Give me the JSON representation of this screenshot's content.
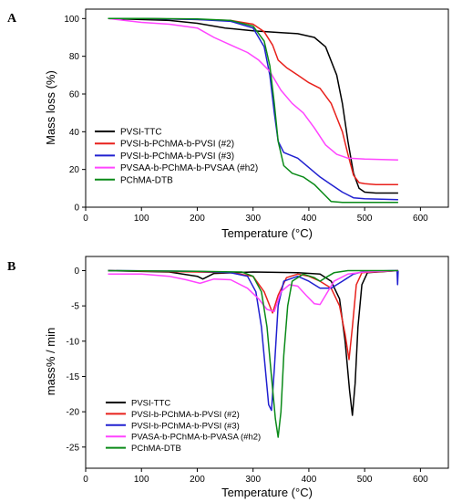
{
  "chart_data": [
    {
      "type": "line",
      "panel_label": "A",
      "xlabel": "Temperature (°C)",
      "ylabel": "Mass loss (%)",
      "xlim": [
        0,
        650
      ],
      "ylim": [
        0,
        105
      ],
      "xticks": [
        0,
        100,
        200,
        300,
        400,
        500,
        600
      ],
      "yticks": [
        0,
        20,
        40,
        60,
        80,
        100
      ],
      "grid": false,
      "legend_position": "bottom-left",
      "series": [
        {
          "name": "PVSI-TTC",
          "color": "#000000",
          "points": [
            [
              40,
              100
            ],
            [
              100,
              99.5
            ],
            [
              150,
              99
            ],
            [
              200,
              97.5
            ],
            [
              250,
              95
            ],
            [
              300,
              93.5
            ],
            [
              350,
              92.5
            ],
            [
              380,
              92
            ],
            [
              410,
              90
            ],
            [
              430,
              85
            ],
            [
              450,
              70
            ],
            [
              460,
              55
            ],
            [
              470,
              35
            ],
            [
              480,
              18
            ],
            [
              490,
              10
            ],
            [
              500,
              8
            ],
            [
              520,
              7.5
            ],
            [
              560,
              7.5
            ]
          ]
        },
        {
          "name": "PVSI-b-PChMA-b-PVSI (#2)",
          "color": "#e8211c",
          "points": [
            [
              40,
              100
            ],
            [
              100,
              100
            ],
            [
              200,
              99.5
            ],
            [
              260,
              99
            ],
            [
              300,
              97
            ],
            [
              320,
              93
            ],
            [
              335,
              86
            ],
            [
              345,
              78
            ],
            [
              360,
              74
            ],
            [
              380,
              70
            ],
            [
              400,
              66
            ],
            [
              420,
              63
            ],
            [
              440,
              55
            ],
            [
              460,
              40
            ],
            [
              470,
              28
            ],
            [
              480,
              17
            ],
            [
              490,
              13
            ],
            [
              500,
              12.5
            ],
            [
              520,
              12
            ],
            [
              560,
              12
            ]
          ]
        },
        {
          "name": "PVSI-b-PChMA-b-PVSI (#3)",
          "color": "#2020d0",
          "points": [
            [
              40,
              100
            ],
            [
              100,
              100
            ],
            [
              200,
              99.5
            ],
            [
              260,
              98.5
            ],
            [
              300,
              95
            ],
            [
              320,
              85
            ],
            [
              330,
              70
            ],
            [
              338,
              50
            ],
            [
              345,
              35
            ],
            [
              355,
              29
            ],
            [
              380,
              26
            ],
            [
              400,
              21
            ],
            [
              420,
              16
            ],
            [
              440,
              12
            ],
            [
              460,
              8
            ],
            [
              480,
              5
            ],
            [
              500,
              4.5
            ],
            [
              560,
              4
            ]
          ]
        },
        {
          "name": "PVSAA-b-PChMA-b-PVSAA (#h2)",
          "color": "#ff44ff",
          "points": [
            [
              40,
              100
            ],
            [
              100,
              98
            ],
            [
              150,
              97
            ],
            [
              200,
              95
            ],
            [
              230,
              90
            ],
            [
              260,
              86
            ],
            [
              290,
              82
            ],
            [
              310,
              78
            ],
            [
              330,
              72
            ],
            [
              350,
              62
            ],
            [
              370,
              55
            ],
            [
              390,
              50
            ],
            [
              410,
              42
            ],
            [
              430,
              33
            ],
            [
              450,
              28
            ],
            [
              470,
              26
            ],
            [
              500,
              25.5
            ],
            [
              560,
              25
            ]
          ]
        },
        {
          "name": "PChMA-DTB",
          "color": "#0a8a18",
          "points": [
            [
              40,
              100
            ],
            [
              100,
              100
            ],
            [
              200,
              99.8
            ],
            [
              260,
              99
            ],
            [
              300,
              96
            ],
            [
              320,
              88
            ],
            [
              330,
              75
            ],
            [
              338,
              55
            ],
            [
              345,
              35
            ],
            [
              355,
              22
            ],
            [
              370,
              18
            ],
            [
              390,
              16
            ],
            [
              410,
              12
            ],
            [
              430,
              6
            ],
            [
              440,
              3
            ],
            [
              460,
              2.5
            ],
            [
              560,
              2.5
            ]
          ]
        }
      ]
    },
    {
      "type": "line",
      "panel_label": "B",
      "xlabel": "Temperature (°C)",
      "ylabel": "mass% / min",
      "xlim": [
        0,
        650
      ],
      "ylim": [
        -28,
        2
      ],
      "xticks": [
        0,
        100,
        200,
        300,
        400,
        500,
        600
      ],
      "yticks": [
        0,
        -5,
        -10,
        -15,
        -20,
        -25
      ],
      "grid": false,
      "legend_position": "bottom-center",
      "series": [
        {
          "name": "PVSI-TTC",
          "color": "#000000",
          "points": [
            [
              40,
              0
            ],
            [
              150,
              -0.2
            ],
            [
              200,
              -0.8
            ],
            [
              210,
              -1.2
            ],
            [
              230,
              -0.4
            ],
            [
              300,
              -0.2
            ],
            [
              380,
              -0.3
            ],
            [
              420,
              -0.5
            ],
            [
              440,
              -1.5
            ],
            [
              455,
              -4
            ],
            [
              465,
              -10
            ],
            [
              473,
              -17
            ],
            [
              478,
              -20.5
            ],
            [
              483,
              -16
            ],
            [
              488,
              -8
            ],
            [
              495,
              -2
            ],
            [
              505,
              -0.3
            ],
            [
              560,
              0
            ]
          ]
        },
        {
          "name": "PVSI-b-PChMA-b-PVSI (#2)",
          "color": "#e8211c",
          "points": [
            [
              40,
              0
            ],
            [
              200,
              -0.2
            ],
            [
              260,
              -0.3
            ],
            [
              300,
              -0.8
            ],
            [
              320,
              -3
            ],
            [
              335,
              -6
            ],
            [
              345,
              -3.5
            ],
            [
              360,
              -1
            ],
            [
              380,
              -0.5
            ],
            [
              400,
              -0.8
            ],
            [
              420,
              -1.5
            ],
            [
              440,
              -2.5
            ],
            [
              455,
              -5
            ],
            [
              465,
              -9
            ],
            [
              472,
              -12.6
            ],
            [
              478,
              -8
            ],
            [
              485,
              -2
            ],
            [
              495,
              -0.3
            ],
            [
              560,
              0
            ]
          ]
        },
        {
          "name": "PVSI-b-PChMA-b-PVSI (#3)",
          "color": "#2020d0",
          "points": [
            [
              40,
              0
            ],
            [
              200,
              -0.1
            ],
            [
              260,
              -0.3
            ],
            [
              290,
              -0.8
            ],
            [
              305,
              -3
            ],
            [
              315,
              -8
            ],
            [
              322,
              -14
            ],
            [
              328,
              -19
            ],
            [
              333,
              -19.8
            ],
            [
              338,
              -14
            ],
            [
              345,
              -5
            ],
            [
              355,
              -1.5
            ],
            [
              380,
              -0.8
            ],
            [
              400,
              -1.5
            ],
            [
              420,
              -2.5
            ],
            [
              440,
              -2.5
            ],
            [
              460,
              -1.5
            ],
            [
              480,
              -0.5
            ],
            [
              500,
              -0.1
            ],
            [
              550,
              0
            ],
            [
              558,
              0
            ],
            [
              559,
              -2
            ],
            [
              560,
              0
            ]
          ]
        },
        {
          "name": "PVASA-b-PChMA-b-PVASA (#h2)",
          "color": "#ff44ff",
          "points": [
            [
              40,
              -0.5
            ],
            [
              100,
              -0.5
            ],
            [
              150,
              -0.8
            ],
            [
              180,
              -1.3
            ],
            [
              205,
              -1.8
            ],
            [
              230,
              -1.2
            ],
            [
              260,
              -1.3
            ],
            [
              290,
              -2.5
            ],
            [
              310,
              -4
            ],
            [
              325,
              -5.5
            ],
            [
              338,
              -5.8
            ],
            [
              350,
              -3
            ],
            [
              365,
              -2
            ],
            [
              380,
              -2.2
            ],
            [
              395,
              -3.5
            ],
            [
              410,
              -4.7
            ],
            [
              420,
              -4.8
            ],
            [
              430,
              -3.5
            ],
            [
              445,
              -1.5
            ],
            [
              470,
              -0.5
            ],
            [
              500,
              -0.2
            ],
            [
              560,
              0
            ]
          ]
        },
        {
          "name": "PChMA-DTB",
          "color": "#0a8a18",
          "points": [
            [
              40,
              0
            ],
            [
              200,
              -0.1
            ],
            [
              280,
              -0.2
            ],
            [
              300,
              -0.8
            ],
            [
              315,
              -3
            ],
            [
              325,
              -8
            ],
            [
              333,
              -15
            ],
            [
              340,
              -21
            ],
            [
              345,
              -23.6
            ],
            [
              350,
              -20
            ],
            [
              355,
              -12
            ],
            [
              362,
              -5
            ],
            [
              370,
              -1.5
            ],
            [
              390,
              -0.5
            ],
            [
              410,
              -1
            ],
            [
              420,
              -1.5
            ],
            [
              430,
              -1
            ],
            [
              445,
              -0.3
            ],
            [
              470,
              0
            ],
            [
              560,
              0
            ]
          ]
        }
      ]
    }
  ]
}
